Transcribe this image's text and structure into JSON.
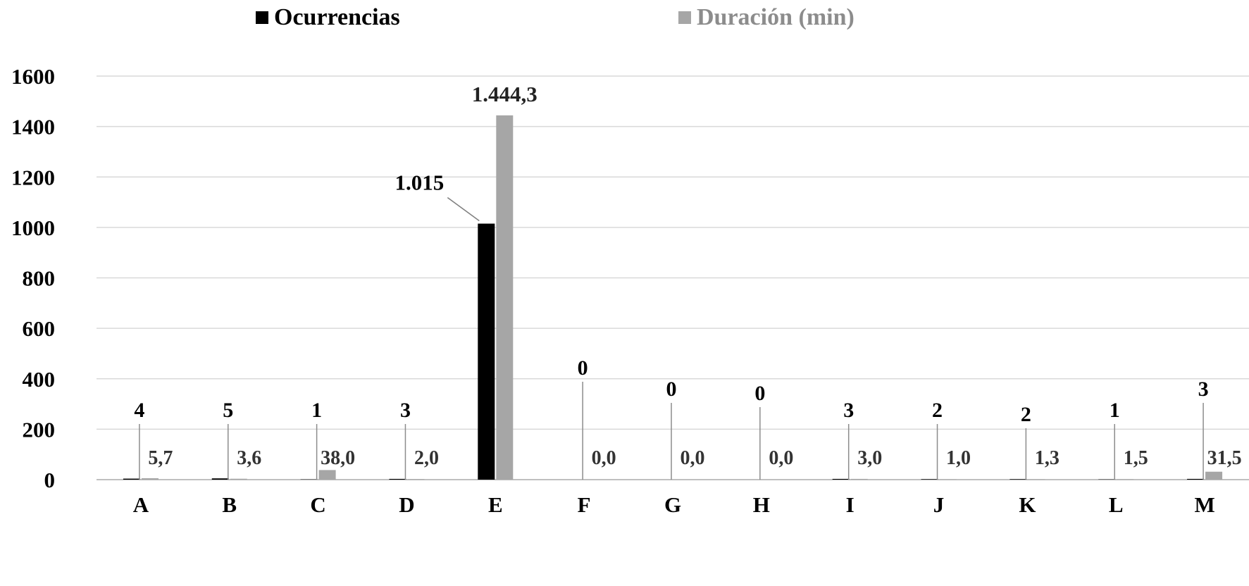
{
  "chart_data": {
    "type": "bar",
    "title": "",
    "xlabel": "",
    "ylabel": "",
    "ylim": [
      0,
      1600
    ],
    "yticks": [
      0,
      200,
      400,
      600,
      800,
      1000,
      1200,
      1400,
      1600
    ],
    "grid": true,
    "legend_position": "top",
    "categories": [
      "A",
      "B",
      "C",
      "D",
      "E",
      "F",
      "G",
      "H",
      "I",
      "J",
      "K",
      "L",
      "M"
    ],
    "series": [
      {
        "name": "Ocurrencias",
        "color": "#000000",
        "values": [
          4,
          5,
          1,
          3,
          1015,
          0,
          0,
          0,
          3,
          2,
          2,
          1,
          3
        ],
        "labels": [
          "4",
          "5",
          "1",
          "3",
          "1.015",
          "0",
          "0",
          "0",
          "3",
          "2",
          "2",
          "1",
          "3"
        ]
      },
      {
        "name": "Duración (min)",
        "color": "#a6a6a6",
        "values": [
          5.7,
          3.6,
          38.0,
          2.0,
          1444.3,
          0.0,
          0.0,
          0.0,
          3.0,
          1.0,
          1.3,
          1.5,
          31.5
        ],
        "labels": [
          "5,7",
          "3,6",
          "38,0",
          "2,0",
          "1.444,3",
          "0,0",
          "0,0",
          "0,0",
          "3,0",
          "1,0",
          "1,3",
          "1,5",
          "31,5"
        ]
      }
    ]
  }
}
